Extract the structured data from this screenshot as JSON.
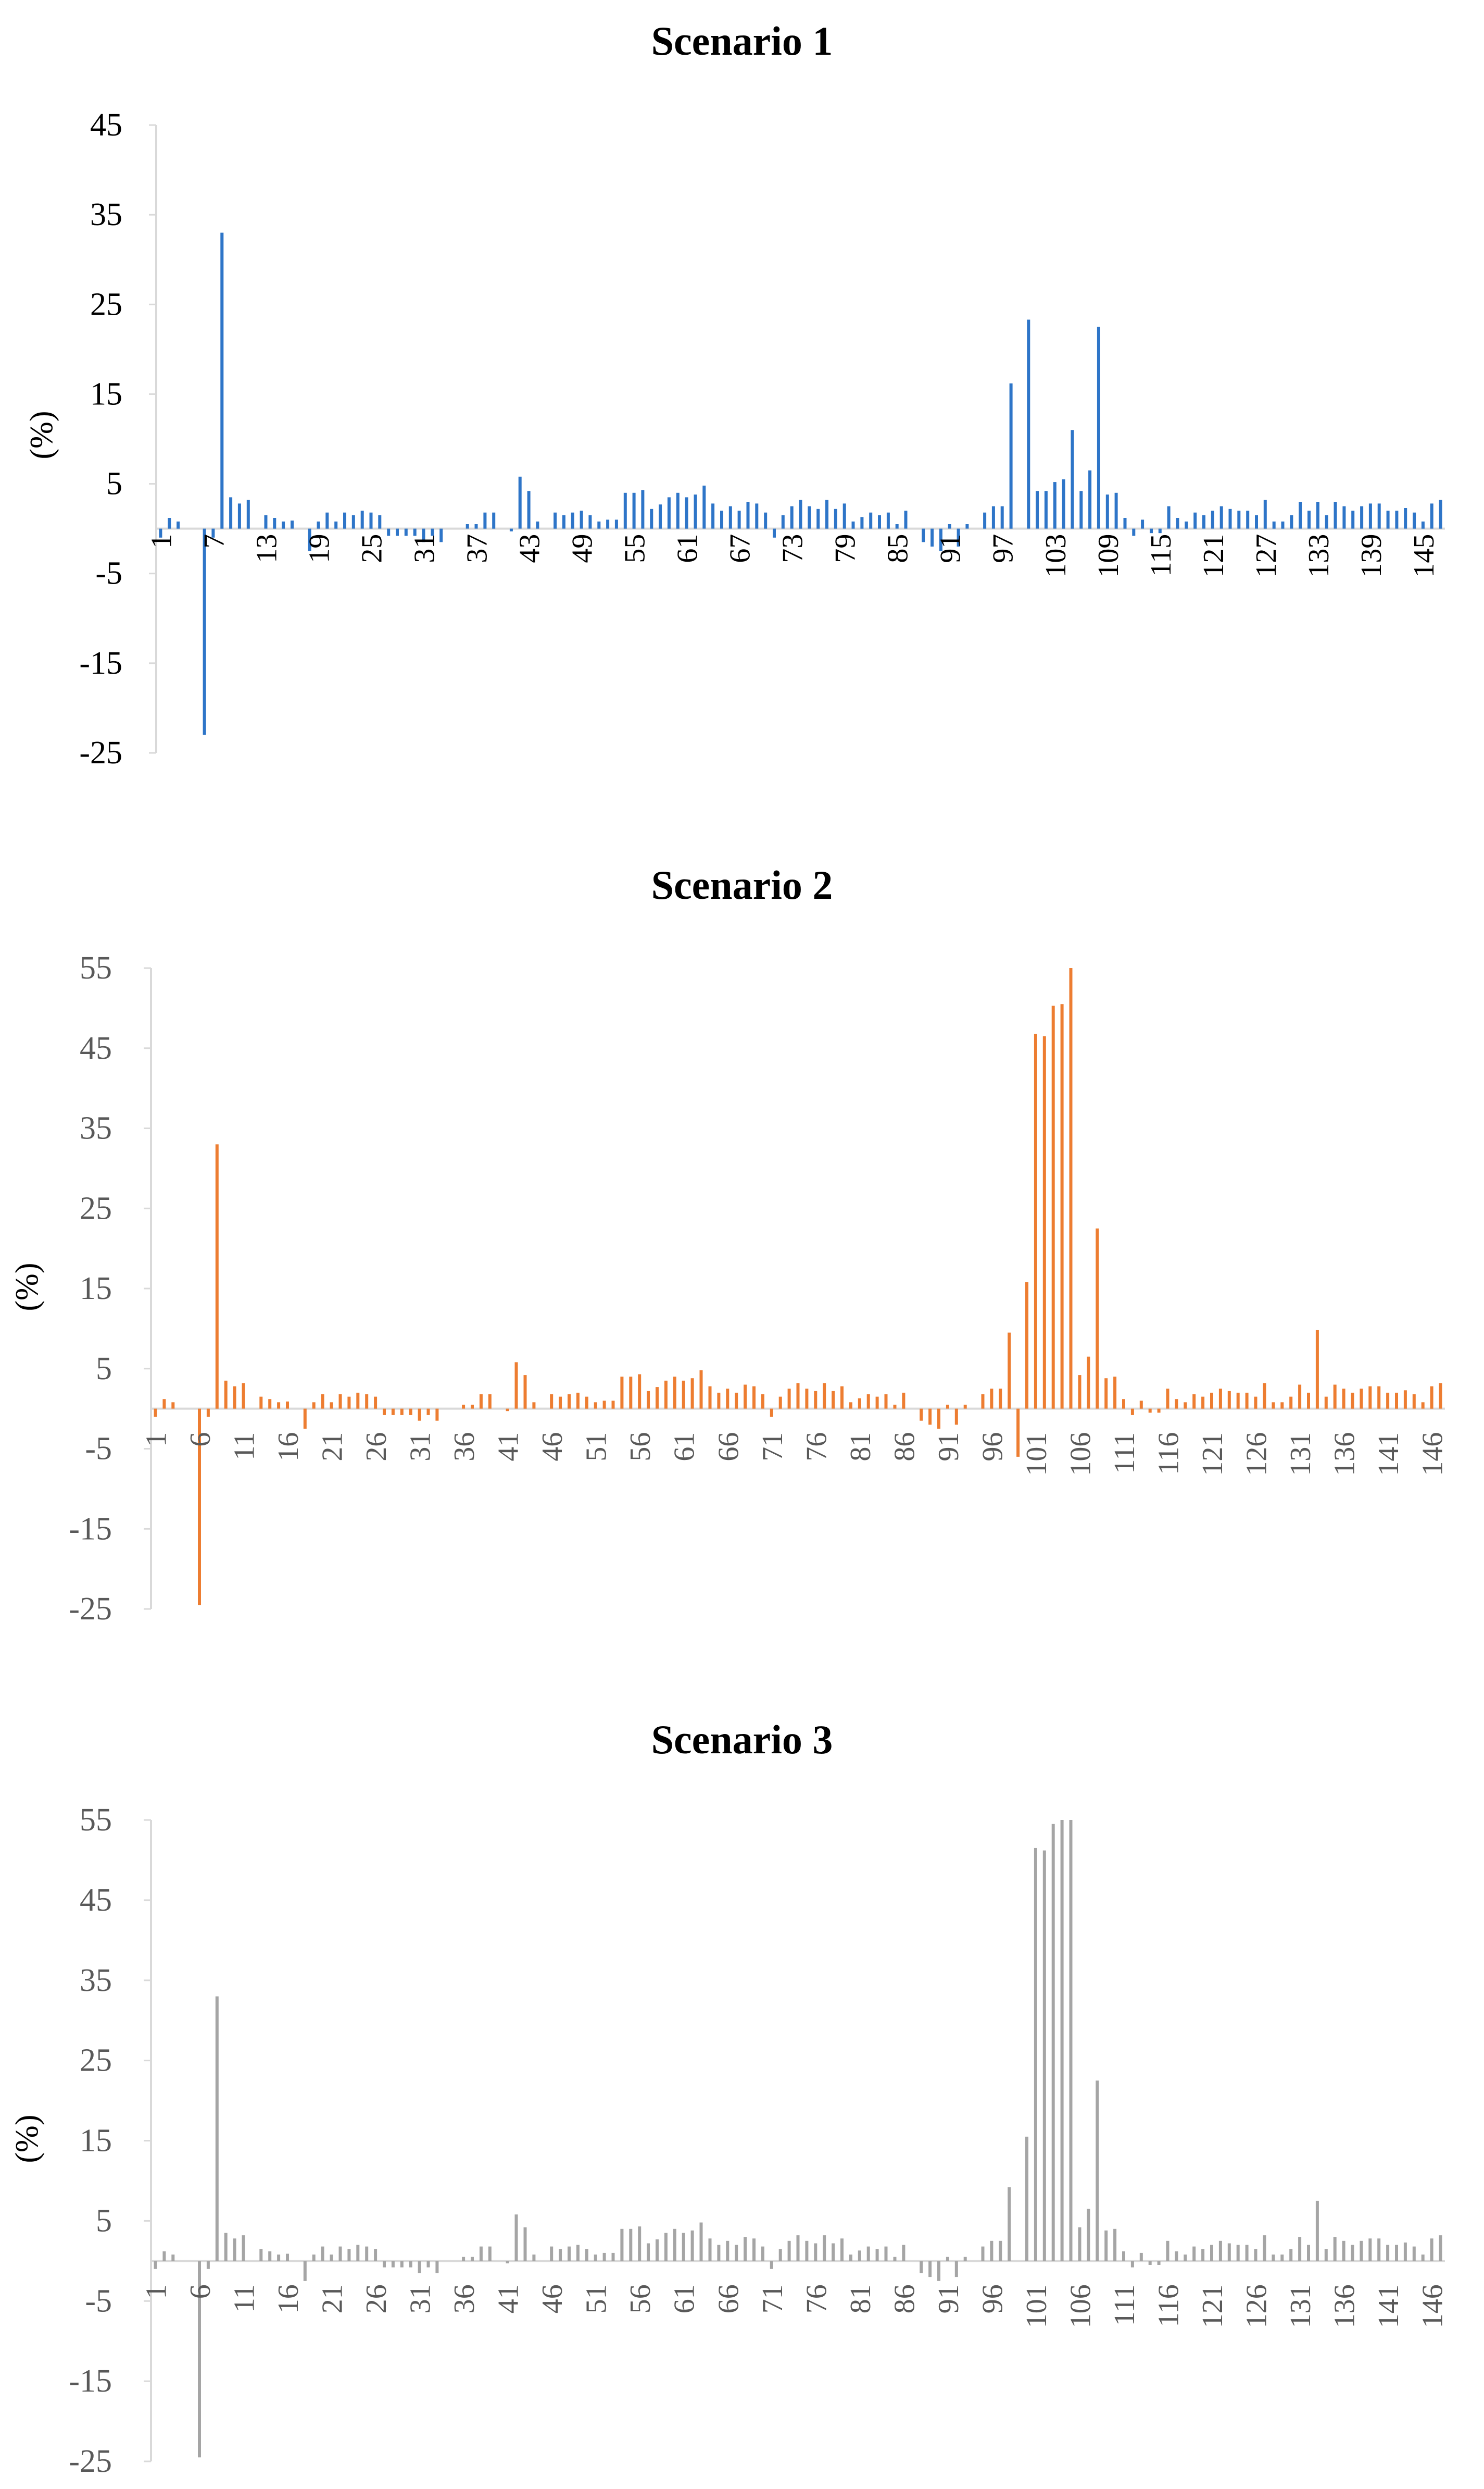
{
  "chart_data": [
    {
      "type": "bar",
      "title": "Scenario 1",
      "ylabel": "(%)",
      "xlabel": "",
      "ylim": [
        -25,
        45
      ],
      "yticks": [
        "45",
        "35",
        "25",
        "15",
        "5",
        "-5",
        "-15",
        "-25"
      ],
      "x_tick_labels": [
        "1",
        "7",
        "13",
        "19",
        "25",
        "31",
        "37",
        "43",
        "49",
        "55",
        "61",
        "67",
        "73",
        "79",
        "85",
        "91",
        "97",
        "103",
        "109",
        "115",
        "121",
        "127",
        "133",
        "139",
        "145"
      ],
      "x_tick_first": 1,
      "x_tick_step": 6,
      "color": "#2e75c8",
      "categories_start": 1,
      "categories_end": 146,
      "values": [
        -1,
        1.2,
        0.8,
        0,
        0,
        -23,
        -1,
        33,
        3.5,
        2.8,
        3.2,
        0,
        1.5,
        1.2,
        0.8,
        0.9,
        0,
        -2.5,
        0.8,
        1.8,
        0.8,
        1.8,
        1.5,
        2,
        1.8,
        1.5,
        -0.8,
        -0.8,
        -0.8,
        -0.8,
        -1.5,
        -0.8,
        -1.5,
        0,
        0,
        0.5,
        0.5,
        1.8,
        1.8,
        0,
        -0.3,
        5.8,
        4.2,
        0.8,
        0,
        1.8,
        1.5,
        1.8,
        2,
        1.5,
        0.8,
        1,
        1,
        4,
        4,
        4.3,
        2.2,
        2.7,
        3.5,
        4,
        3.5,
        3.8,
        4.8,
        2.8,
        2,
        2.5,
        2,
        3,
        2.8,
        1.8,
        -1,
        1.5,
        2.5,
        3.2,
        2.5,
        2.2,
        3.2,
        2.2,
        2.8,
        0.8,
        1.3,
        1.8,
        1.5,
        1.8,
        0.5,
        2,
        0,
        -1.5,
        -2,
        -2.5,
        0.5,
        -2,
        0.5,
        0,
        1.8,
        2.5,
        2.5,
        16.2,
        0,
        23.3,
        4.2,
        4.2,
        5.2,
        5.5,
        11,
        4.2,
        6.5,
        22.5,
        3.8,
        4,
        1.2,
        -0.8,
        1,
        -0.5,
        -0.5,
        2.5,
        1.2,
        0.8,
        1.8,
        1.5,
        2,
        2.5,
        2.2,
        2,
        2,
        1.5,
        3.2,
        0.8,
        0.8,
        1.5,
        3,
        2,
        3,
        1.5,
        3,
        2.5,
        2,
        2.5,
        2.8,
        2.8,
        2,
        2,
        2.3,
        1.8,
        0.8,
        2.8,
        3.2
      ]
    },
    {
      "type": "bar",
      "title": "Scenario 2",
      "ylabel": "(%)",
      "xlabel": "",
      "ylim": [
        -25,
        55
      ],
      "yticks": [
        "55",
        "45",
        "35",
        "25",
        "15",
        "5",
        "-5",
        "-15",
        "-25"
      ],
      "x_tick_labels": [
        "1",
        "6",
        "11",
        "16",
        "21",
        "26",
        "31",
        "36",
        "41",
        "46",
        "51",
        "56",
        "61",
        "66",
        "71",
        "76",
        "81",
        "86",
        "91",
        "96",
        "101",
        "106",
        "111",
        "116",
        "121",
        "126",
        "131",
        "136",
        "141",
        "146"
      ],
      "x_tick_first": 1,
      "x_tick_step": 5,
      "color": "#ed7d31",
      "categories_start": 1,
      "categories_end": 146,
      "values": [
        -1,
        1.2,
        0.8,
        0,
        0,
        -24.5,
        -1,
        33,
        3.5,
        2.8,
        3.2,
        0,
        1.5,
        1.2,
        0.8,
        0.9,
        0,
        -2.5,
        0.8,
        1.8,
        0.8,
        1.8,
        1.5,
        2,
        1.8,
        1.5,
        -0.8,
        -0.8,
        -0.8,
        -0.8,
        -1.5,
        -0.8,
        -1.5,
        0,
        0,
        0.5,
        0.5,
        1.8,
        1.8,
        0,
        -0.3,
        5.8,
        4.2,
        0.8,
        0,
        1.8,
        1.5,
        1.8,
        2,
        1.5,
        0.8,
        1,
        1,
        4,
        4,
        4.3,
        2.2,
        2.7,
        3.5,
        4,
        3.5,
        3.8,
        4.8,
        2.8,
        2,
        2.5,
        2,
        3,
        2.8,
        1.8,
        -1,
        1.5,
        2.5,
        3.2,
        2.5,
        2.2,
        3.2,
        2.2,
        2.8,
        0.8,
        1.3,
        1.8,
        1.5,
        1.8,
        0.5,
        2,
        0,
        -1.5,
        -2,
        -2.5,
        0.5,
        -2,
        0.5,
        0,
        1.8,
        2.5,
        2.5,
        9.5,
        -6,
        15.8,
        46.8,
        46.5,
        50.3,
        50.5,
        55,
        4.2,
        6.5,
        22.5,
        3.8,
        4,
        1.2,
        -0.8,
        1,
        -0.5,
        -0.5,
        2.5,
        1.2,
        0.8,
        1.8,
        1.5,
        2,
        2.5,
        2.2,
        2,
        2,
        1.5,
        3.2,
        0.8,
        0.8,
        1.5,
        3,
        2,
        9.8,
        1.5,
        3,
        2.5,
        2,
        2.5,
        2.8,
        2.8,
        2,
        2,
        2.3,
        1.8,
        0.8,
        2.8,
        3.2
      ]
    },
    {
      "type": "bar",
      "title": "Scenario 3",
      "ylabel": "(%)",
      "xlabel": "",
      "ylim": [
        -25,
        55
      ],
      "yticks": [
        "55",
        "45",
        "35",
        "25",
        "15",
        "5",
        "-5",
        "-15",
        "-25"
      ],
      "x_tick_labels": [
        "1",
        "6",
        "11",
        "16",
        "21",
        "26",
        "31",
        "36",
        "41",
        "46",
        "51",
        "56",
        "61",
        "66",
        "71",
        "76",
        "81",
        "86",
        "91",
        "96",
        "101",
        "106",
        "111",
        "116",
        "121",
        "126",
        "131",
        "136",
        "141",
        "146"
      ],
      "x_tick_first": 1,
      "x_tick_step": 5,
      "color": "#a5a5a5",
      "categories_start": 1,
      "categories_end": 146,
      "values": [
        -1,
        1.2,
        0.8,
        0,
        0,
        -24.5,
        -1,
        33,
        3.5,
        2.8,
        3.2,
        0,
        1.5,
        1.2,
        0.8,
        0.9,
        0,
        -2.5,
        0.8,
        1.8,
        0.8,
        1.8,
        1.5,
        2,
        1.8,
        1.5,
        -0.8,
        -0.8,
        -0.8,
        -0.8,
        -1.5,
        -0.8,
        -1.5,
        0,
        0,
        0.5,
        0.5,
        1.8,
        1.8,
        0,
        -0.3,
        5.8,
        4.2,
        0.8,
        0,
        1.8,
        1.5,
        1.8,
        2,
        1.5,
        0.8,
        1,
        1,
        4,
        4,
        4.3,
        2.2,
        2.7,
        3.5,
        4,
        3.5,
        3.8,
        4.8,
        2.8,
        2,
        2.5,
        2,
        3,
        2.8,
        1.8,
        -1,
        1.5,
        2.5,
        3.2,
        2.5,
        2.2,
        3.2,
        2.2,
        2.8,
        0.8,
        1.3,
        1.8,
        1.5,
        1.8,
        0.5,
        2,
        0,
        -1.5,
        -2,
        -2.5,
        0.5,
        -2,
        0.5,
        0,
        1.8,
        2.5,
        2.5,
        9.2,
        0,
        15.5,
        51.5,
        51.2,
        54.5,
        55,
        55,
        4.2,
        6.5,
        22.5,
        3.8,
        4,
        1.2,
        -0.8,
        1,
        -0.5,
        -0.5,
        2.5,
        1.2,
        0.8,
        1.8,
        1.5,
        2,
        2.5,
        2.2,
        2,
        2,
        1.5,
        3.2,
        0.8,
        0.8,
        1.5,
        3,
        2,
        7.5,
        1.5,
        3,
        2.5,
        2,
        2.5,
        2.8,
        2.8,
        2,
        2,
        2.3,
        1.8,
        0.8,
        2.8,
        3.2
      ]
    }
  ]
}
